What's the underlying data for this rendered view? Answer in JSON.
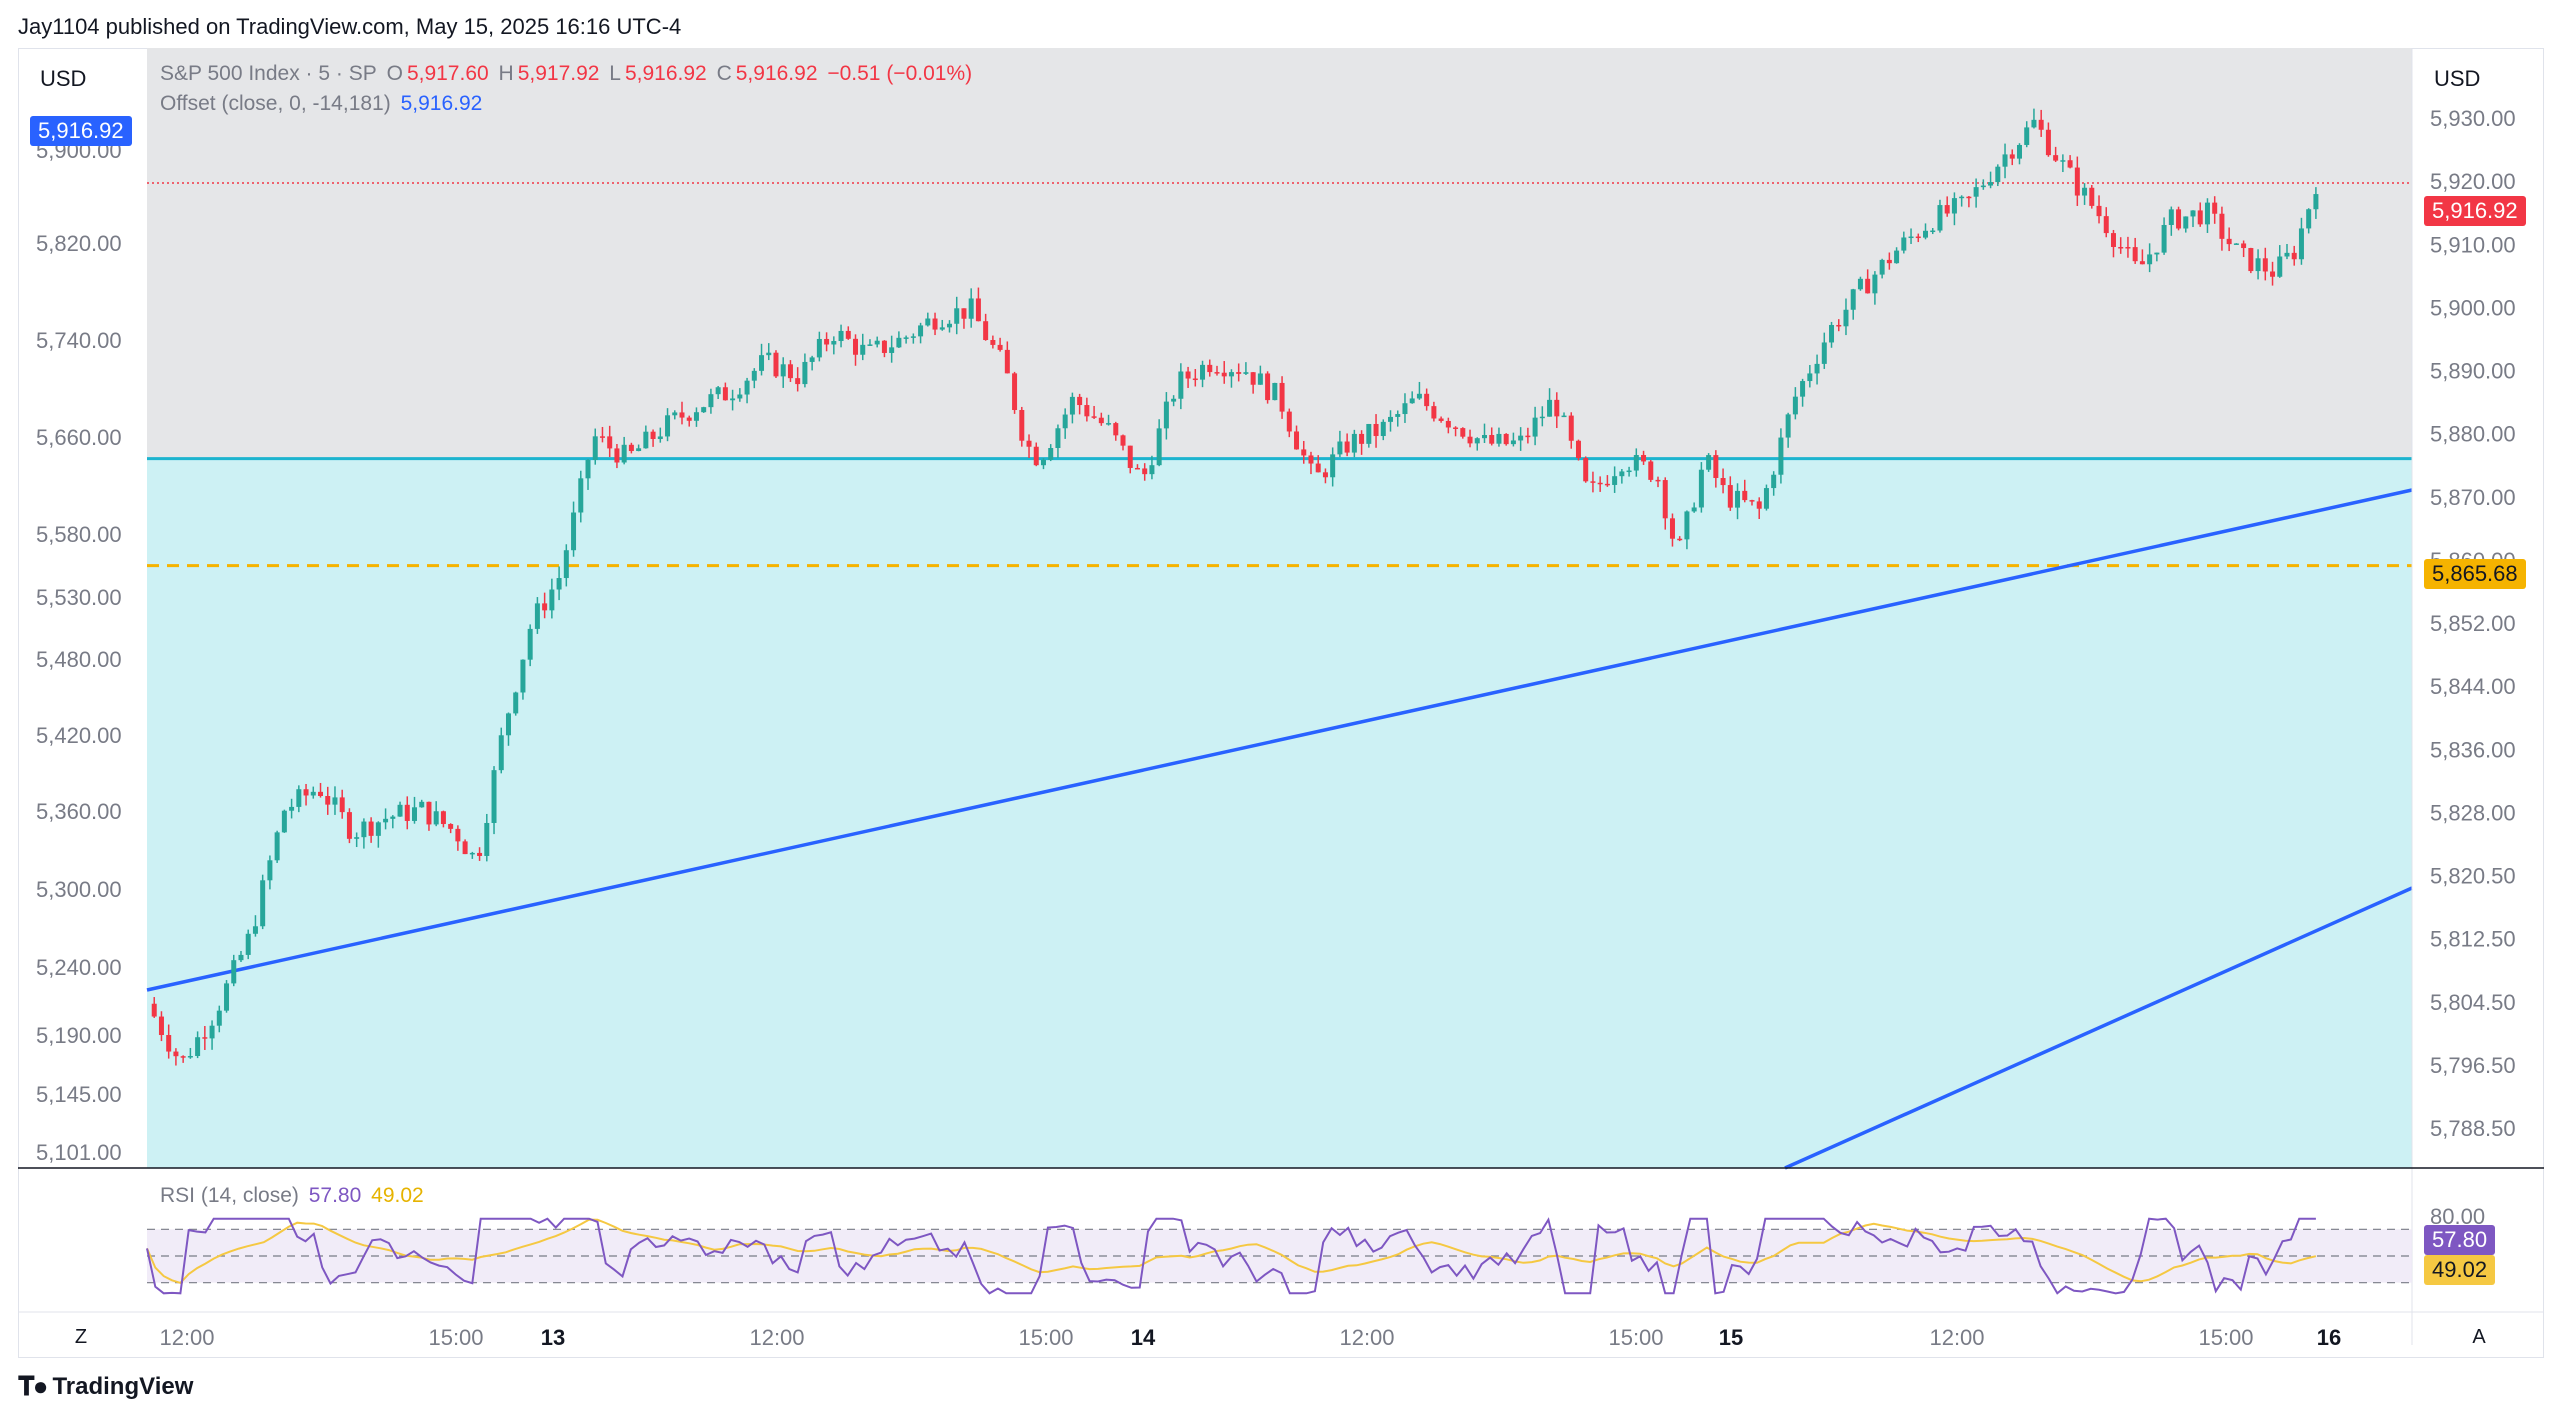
{
  "header": {
    "publisher_line": "Jay1104 published on TradingView.com, May 15, 2025 16:16 UTC-4"
  },
  "legend": {
    "symbol": "S&P 500 Index · 5 · SP",
    "o_label": "O",
    "o_value": "5,917.60",
    "h_label": "H",
    "h_value": "5,917.92",
    "l_label": "L",
    "l_value": "5,916.92",
    "c_label": "C",
    "c_value": "5,916.92",
    "change": "−0.51 (−0.01%)",
    "offset_label": "Offset (close, 0, -14,181)",
    "offset_value": "5,916.92"
  },
  "rsi": {
    "label": "RSI (14, close)",
    "value": "57.80",
    "ma_value": "49.02",
    "level_label": "80.00"
  },
  "axes": {
    "left_currency": "USD",
    "right_currency": "USD",
    "left_tag": "5,916.92",
    "right_tag_price": "5,916.92",
    "right_tag_level": "5,865.68",
    "left_ticks": [
      "5,900.00",
      "5,820.00",
      "5,740.00",
      "5,660.00",
      "5,580.00",
      "5,530.00",
      "5,480.00",
      "5,420.00",
      "5,360.00",
      "5,300.00",
      "5,240.00",
      "5,190.00",
      "5,145.00",
      "5,101.00"
    ],
    "right_ticks": [
      "5,930.00",
      "5,920.00",
      "5,910.00",
      "5,900.00",
      "5,890.00",
      "5,880.00",
      "5,870.00",
      "5,860.00",
      "5,852.00",
      "5,844.00",
      "5,836.00",
      "5,828.00",
      "5,820.50",
      "5,812.50",
      "5,804.50",
      "5,796.50",
      "5,788.50"
    ],
    "time_ticks": [
      "12:00",
      "15:00",
      "13",
      "12:00",
      "15:00",
      "14",
      "12:00",
      "15:00",
      "15",
      "12:00",
      "15:00",
      "16"
    ]
  },
  "buttons": {
    "z": "Z",
    "a": "A"
  },
  "footer": {
    "brand": "TradingView"
  },
  "colors": {
    "up": "#26a69a",
    "down": "#f23645",
    "cyan_fill": "#cdf1f4",
    "grey_fill": "#e5e6e8",
    "trend": "#2962ff",
    "level": "#f5b300",
    "cyan_line": "#1cb4cf",
    "rsi_line": "#7e57c2",
    "rsi_ma": "#f5c842"
  },
  "chart_data": {
    "type": "candlestick",
    "title": "S&P 500 Index · 5 · SP",
    "ylabel": "USD",
    "ylim": [
      5785,
      5935
    ],
    "x": [
      "12:00",
      "15:00",
      "13",
      "12:00",
      "15:00",
      "14",
      "12:00",
      "15:00",
      "15",
      "12:00",
      "15:00",
      "16"
    ],
    "close_path": [
      [
        0,
        5807
      ],
      [
        0.5,
        5799
      ],
      [
        1,
        5806
      ],
      [
        1.5,
        5816
      ],
      [
        2,
        5833
      ],
      [
        2.5,
        5836
      ],
      [
        3,
        5830
      ],
      [
        3.5,
        5832
      ],
      [
        4,
        5833
      ],
      [
        4.5,
        5830
      ],
      [
        4.8,
        5826
      ],
      [
        5.2,
        5844
      ],
      [
        5.6,
        5858
      ],
      [
        6,
        5864
      ],
      [
        6.3,
        5875
      ],
      [
        6.5,
        5883
      ],
      [
        7,
        5880
      ],
      [
        7.5,
        5884
      ],
      [
        8,
        5887
      ],
      [
        8.5,
        5889
      ],
      [
        9,
        5893
      ],
      [
        9.5,
        5891
      ],
      [
        10,
        5897
      ],
      [
        10.5,
        5894
      ],
      [
        11,
        5896
      ],
      [
        11.5,
        5899
      ],
      [
        12,
        5900
      ],
      [
        12.5,
        5892
      ],
      [
        12.8,
        5882
      ],
      [
        13,
        5880
      ],
      [
        13.5,
        5888
      ],
      [
        14,
        5884
      ],
      [
        14.5,
        5877
      ],
      [
        15,
        5890
      ],
      [
        15.5,
        5893
      ],
      [
        16,
        5892
      ],
      [
        16.5,
        5888
      ],
      [
        17,
        5877
      ],
      [
        17.5,
        5882
      ],
      [
        18,
        5884
      ],
      [
        18.5,
        5888
      ],
      [
        19,
        5885
      ],
      [
        19.5,
        5882
      ],
      [
        20,
        5882
      ],
      [
        20.5,
        5888
      ],
      [
        21,
        5875
      ],
      [
        21.5,
        5880
      ],
      [
        22,
        5878
      ],
      [
        22.3,
        5867
      ],
      [
        22.7,
        5880
      ],
      [
        23,
        5875
      ],
      [
        23.5,
        5873
      ],
      [
        24,
        5888
      ],
      [
        24.5,
        5897
      ],
      [
        25,
        5903
      ],
      [
        25.5,
        5908
      ],
      [
        26,
        5912
      ],
      [
        26.5,
        5914
      ],
      [
        27,
        5920
      ],
      [
        27.5,
        5925
      ],
      [
        28,
        5918
      ],
      [
        28.5,
        5912
      ],
      [
        29,
        5905
      ],
      [
        29.5,
        5912
      ],
      [
        30,
        5913
      ],
      [
        30.5,
        5907
      ],
      [
        31,
        5905
      ],
      [
        31.3,
        5908
      ],
      [
        31.6,
        5917
      ]
    ],
    "horizontal_levels": [
      5880,
      5865.68
    ],
    "current_price": 5916.92,
    "rsi": {
      "value": 57.8,
      "ma": 49.02,
      "levels": [
        70,
        50,
        30
      ]
    }
  }
}
